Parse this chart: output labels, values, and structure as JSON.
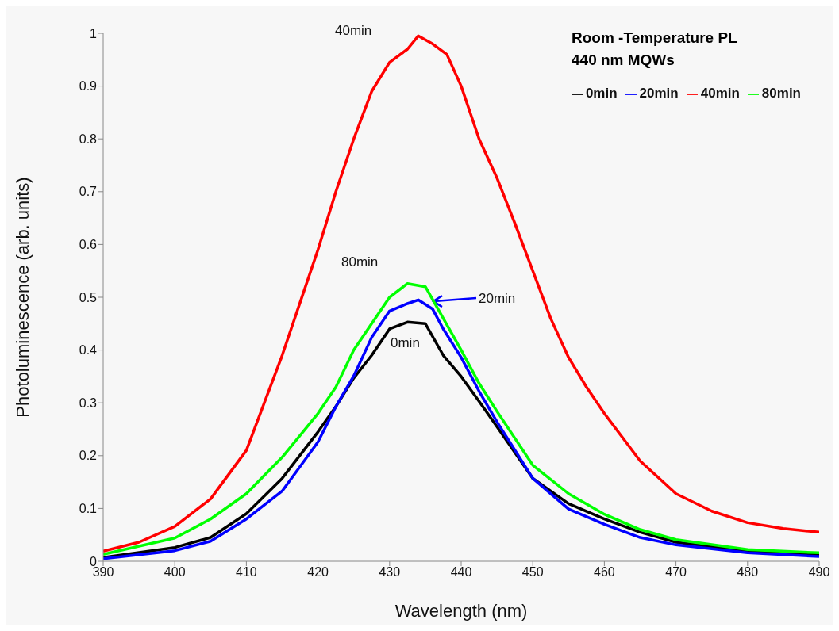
{
  "chart_data": {
    "type": "line",
    "title": "Room -Temperature PL",
    "subtitle": "440 nm MQWs",
    "xlabel": "Wavelength (nm)",
    "ylabel": "Photoluminescence (arb. units)",
    "xlim": [
      390,
      490
    ],
    "xticks": [
      390,
      400,
      410,
      420,
      430,
      440,
      450,
      460,
      470,
      480,
      490
    ],
    "ylim": [
      0,
      1
    ],
    "yticks": [
      0,
      0.1,
      0.2,
      0.3,
      0.4,
      0.5,
      0.6,
      0.7,
      0.8,
      0.9,
      1
    ],
    "grid": false,
    "legend": "top right",
    "marker": "none",
    "line_style": "solid",
    "series": [
      {
        "name": "0min",
        "color": "#000000",
        "x": [
          390,
          400,
          405,
          410,
          415,
          420,
          422.5,
          425,
          427.5,
          430,
          432.5,
          435,
          437.5,
          440,
          442.5,
          445,
          450,
          455,
          460,
          465,
          470,
          480,
          490
        ],
        "values": [
          0.007,
          0.026,
          0.045,
          0.09,
          0.157,
          0.245,
          0.293,
          0.347,
          0.39,
          0.44,
          0.453,
          0.45,
          0.39,
          0.35,
          0.303,
          0.255,
          0.157,
          0.109,
          0.08,
          0.055,
          0.036,
          0.019,
          0.012
        ]
      },
      {
        "name": "20min",
        "color": "#0000ff",
        "x": [
          390,
          400,
          405,
          410,
          415,
          420,
          422.5,
          425,
          427.5,
          430,
          432.5,
          434,
          436,
          437.5,
          440,
          442.5,
          445,
          450,
          455,
          460,
          465,
          470,
          480,
          490
        ],
        "values": [
          0.005,
          0.02,
          0.038,
          0.08,
          0.133,
          0.226,
          0.293,
          0.351,
          0.424,
          0.474,
          0.488,
          0.495,
          0.478,
          0.44,
          0.386,
          0.322,
          0.264,
          0.157,
          0.099,
          0.07,
          0.045,
          0.031,
          0.016,
          0.009
        ]
      },
      {
        "name": "40min",
        "color": "#ff0000",
        "x": [
          390,
          395,
          400,
          405,
          410,
          415,
          417.5,
          420,
          422.5,
          425,
          427.5,
          430,
          432.5,
          434,
          436,
          438,
          440,
          442.5,
          445,
          447.5,
          450,
          452.5,
          455,
          457.5,
          460,
          465,
          470,
          475,
          480,
          485,
          490
        ],
        "values": [
          0.019,
          0.036,
          0.066,
          0.118,
          0.21,
          0.39,
          0.49,
          0.59,
          0.7,
          0.8,
          0.89,
          0.945,
          0.97,
          0.995,
          0.98,
          0.96,
          0.9,
          0.8,
          0.726,
          0.64,
          0.55,
          0.46,
          0.386,
          0.33,
          0.28,
          0.19,
          0.128,
          0.095,
          0.073,
          0.062,
          0.055
        ]
      },
      {
        "name": "80min",
        "color": "#00ff00",
        "x": [
          390,
          400,
          405,
          410,
          415,
          420,
          422.5,
          425,
          427.5,
          430,
          432.5,
          435,
          437.5,
          440,
          442.5,
          445,
          450,
          455,
          460,
          465,
          470,
          480,
          490
        ],
        "values": [
          0.013,
          0.044,
          0.08,
          0.128,
          0.197,
          0.28,
          0.33,
          0.4,
          0.45,
          0.5,
          0.526,
          0.52,
          0.46,
          0.4,
          0.337,
          0.284,
          0.182,
          0.128,
          0.089,
          0.06,
          0.041,
          0.022,
          0.016
        ]
      }
    ],
    "annotations": [
      "40min",
      "80min",
      "20min",
      "0min"
    ]
  }
}
